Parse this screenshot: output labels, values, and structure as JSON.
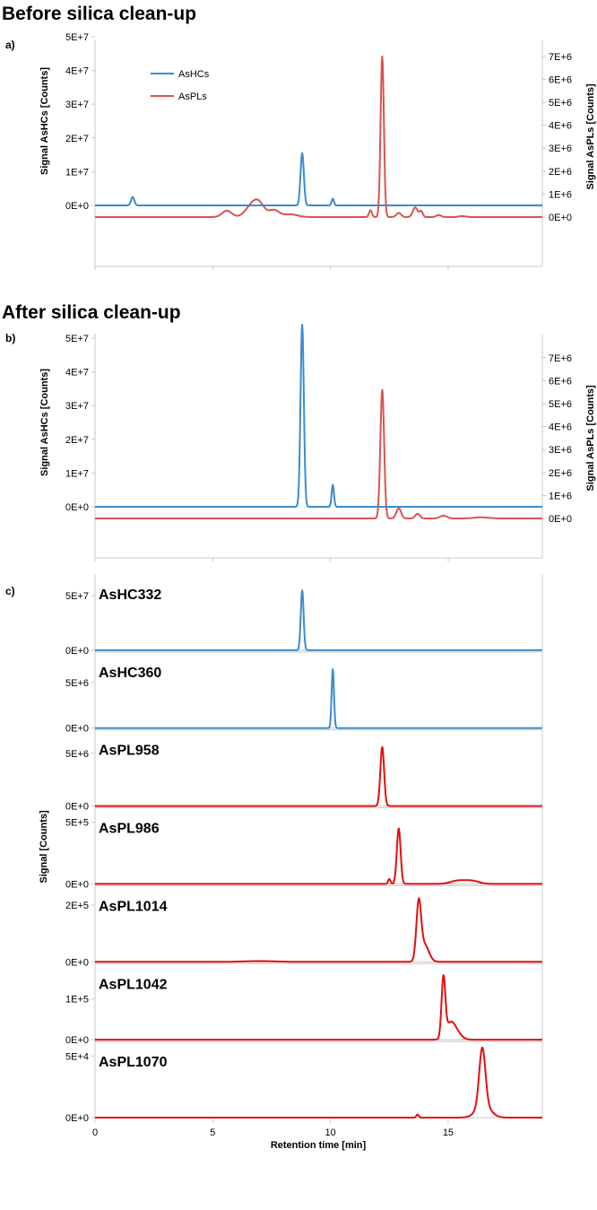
{
  "colors": {
    "hc": "#3c8ccc",
    "pl_ab": "#d9534f",
    "pl_c": "#e01010",
    "axis": "#c8c8c8"
  },
  "sections": {
    "before": "Before silica clean-up",
    "after": "After silica clean-up"
  },
  "chart_data": [
    {
      "id": "a",
      "type": "line",
      "panel_label": "a)",
      "x_range": [
        0,
        19
      ],
      "left_axis": {
        "label": "Signal AsHCs [Counts]",
        "ticks": [
          "0E+0",
          "1E+7",
          "2E+7",
          "3E+7",
          "4E+7",
          "5E+7"
        ],
        "values": [
          0,
          10000000,
          20000000,
          30000000,
          40000000,
          50000000
        ]
      },
      "right_axis": {
        "label": "Signal AsPLs [Counts]",
        "ticks": [
          "0E+0",
          "1E+6",
          "2E+6",
          "3E+6",
          "4E+6",
          "5E+6",
          "6E+6",
          "7E+6"
        ],
        "values": [
          0,
          1000000,
          2000000,
          3000000,
          4000000,
          5000000,
          6000000,
          7000000
        ]
      },
      "legend": {
        "placement": "top-left",
        "entries": [
          "AsHCs",
          "AsPLs"
        ]
      },
      "series": [
        {
          "name": "AsHCs",
          "axis": "left",
          "peaks": [
            [
              1.6,
              2500000,
              0.07
            ],
            [
              8.8,
              15500000,
              0.07
            ],
            [
              10.1,
              2000000,
              0.05
            ]
          ]
        },
        {
          "name": "AsPLs",
          "axis": "right",
          "peaks": [
            [
              5.6,
              280000,
              0.2
            ],
            [
              6.7,
              540000,
              0.28
            ],
            [
              7.0,
              380000,
              0.22
            ],
            [
              7.6,
              300000,
              0.22
            ],
            [
              8.3,
              120000,
              0.3
            ],
            [
              11.7,
              300000,
              0.06
            ],
            [
              12.2,
              7000000,
              0.07
            ],
            [
              12.9,
              180000,
              0.1
            ],
            [
              13.6,
              420000,
              0.1
            ],
            [
              13.85,
              260000,
              0.07
            ],
            [
              14.6,
              90000,
              0.1
            ],
            [
              15.6,
              40000,
              0.15
            ]
          ]
        }
      ]
    },
    {
      "id": "b",
      "type": "line",
      "panel_label": "b)",
      "x_range": [
        0,
        19
      ],
      "left_axis": {
        "label": "Signal AsHCs [Counts]",
        "ticks": [
          "0E+0",
          "1E+7",
          "2E+7",
          "3E+7",
          "4E+7",
          "5E+7"
        ],
        "values": [
          0,
          10000000,
          20000000,
          30000000,
          40000000,
          50000000
        ]
      },
      "right_axis": {
        "label": "Signal AsPLs [Counts]",
        "ticks": [
          "0E+0",
          "1E+6",
          "2E+6",
          "3E+6",
          "4E+6",
          "5E+6",
          "6E+6",
          "7E+6"
        ],
        "values": [
          0,
          1000000,
          2000000,
          3000000,
          4000000,
          5000000,
          6000000,
          7000000
        ]
      },
      "series": [
        {
          "name": "AsHCs",
          "axis": "left",
          "peaks": [
            [
              8.8,
              54000000,
              0.07
            ],
            [
              10.1,
              6500000,
              0.05
            ]
          ]
        },
        {
          "name": "AsPLs",
          "axis": "right",
          "peaks": [
            [
              12.2,
              5600000,
              0.08
            ],
            [
              12.9,
              450000,
              0.1
            ],
            [
              13.7,
              200000,
              0.1
            ],
            [
              14.8,
              120000,
              0.15
            ],
            [
              16.4,
              50000,
              0.3
            ]
          ]
        }
      ]
    },
    {
      "id": "c",
      "type": "line",
      "panel_label": "c)",
      "x_range": [
        0,
        19
      ],
      "xlabel": "Retention time [min]",
      "ylabel": "Signal [Counts]",
      "x_ticks": [
        "0",
        "5",
        "10",
        "15"
      ],
      "x_tick_values": [
        0,
        5,
        10,
        15
      ],
      "subplots": [
        {
          "name": "AsHC332",
          "group": "hc",
          "y_max": 60000000,
          "ticks": [
            "0E+0",
            "5E+7"
          ],
          "tick_values": [
            0,
            50000000
          ],
          "peaks": [
            [
              8.8,
              55000000,
              0.06
            ]
          ]
        },
        {
          "name": "AsHC360",
          "group": "hc",
          "y_max": 7200000,
          "ticks": [
            "0E+0",
            "5E+6"
          ],
          "tick_values": [
            0,
            5000000
          ],
          "peaks": [
            [
              10.1,
              6500000,
              0.05
            ]
          ]
        },
        {
          "name": "AsPL958",
          "group": "pl",
          "y_max": 6200000,
          "ticks": [
            "0E+0",
            "5E+6"
          ],
          "tick_values": [
            0,
            5000000
          ],
          "peaks": [
            [
              12.2,
              5600000,
              0.08
            ]
          ]
        },
        {
          "name": "AsPL986",
          "group": "pl",
          "y_max": 530000,
          "ticks": [
            "0E+0",
            "5E+5"
          ],
          "tick_values": [
            0,
            500000
          ],
          "peaks": [
            [
              12.9,
              450000,
              0.08
            ],
            [
              12.5,
              40000,
              0.05
            ],
            [
              15.4,
              25000,
              0.3
            ],
            [
              16.0,
              25000,
              0.3
            ]
          ]
        },
        {
          "name": "AsPL1014",
          "group": "pl",
          "y_max": 230000,
          "ticks": [
            "0E+0",
            "2E+5"
          ],
          "tick_values": [
            0,
            200000
          ],
          "peaks": [
            [
              13.75,
              200000,
              0.1
            ],
            [
              14.0,
              60000,
              0.18
            ],
            [
              7.0,
              2500,
              0.6
            ]
          ]
        },
        {
          "name": "AsPL1042",
          "group": "pl",
          "y_max": 160000,
          "ticks": [
            "0E+0",
            "1E+5"
          ],
          "tick_values": [
            0,
            100000
          ],
          "peaks": [
            [
              14.8,
              145000,
              0.08
            ],
            [
              15.1,
              40000,
              0.2
            ],
            [
              15.4,
              12000,
              0.2
            ]
          ]
        },
        {
          "name": "AsPL1070",
          "group": "pl",
          "y_max": 53000,
          "ticks": [
            "0E+0",
            "5E+4"
          ],
          "tick_values": [
            0,
            50000
          ],
          "peaks": [
            [
              16.45,
              47000,
              0.13
            ],
            [
              16.5,
              10000,
              0.3
            ],
            [
              13.7,
              2500,
              0.05
            ]
          ]
        }
      ]
    }
  ]
}
